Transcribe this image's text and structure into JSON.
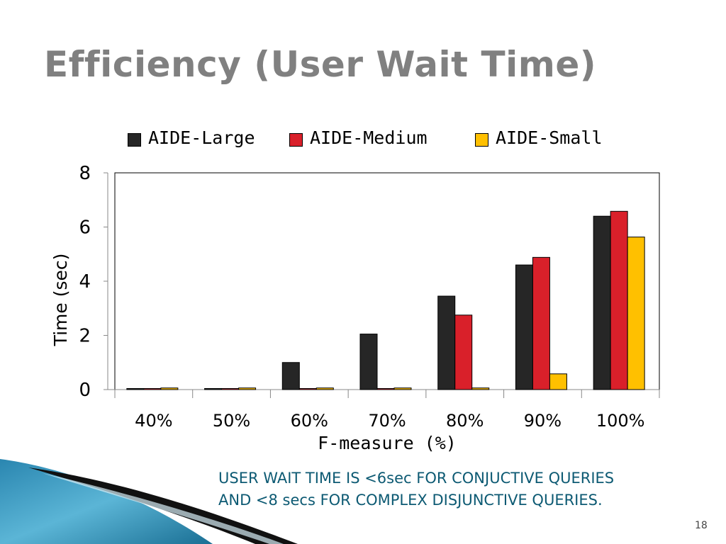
{
  "slide": {
    "title": "Efficiency (User Wait Time)",
    "note_line1": "USER WAIT TIME IS <6sec FOR CONJUCTIVE QUERIES",
    "note_line2": "AND <8 secs FOR COMPLEX DISJUNCTIVE QUERIES.",
    "page_number": "18"
  },
  "colors": {
    "title": "#808080",
    "note": "#0d5a73",
    "decor_light": "#5bb5d6",
    "decor_dark": "#1a6f94"
  },
  "chart_data": {
    "type": "bar",
    "xlabel": "F-measure (%)",
    "ylabel": "Time (sec)",
    "ylim": [
      0,
      8
    ],
    "yticks": [
      0,
      2,
      4,
      6,
      8
    ],
    "grid": false,
    "legend_position": "top",
    "categories": [
      "40%",
      "50%",
      "60%",
      "70%",
      "80%",
      "90%",
      "100%"
    ],
    "series": [
      {
        "name": "AIDE-Large",
        "color": "#262626",
        "values": [
          0.02,
          0.04,
          1.0,
          2.05,
          3.45,
          4.6,
          6.4
        ]
      },
      {
        "name": "AIDE-Medium",
        "color": "#d9202a",
        "values": [
          0.04,
          0.04,
          0.04,
          0.04,
          2.75,
          4.88,
          6.58
        ]
      },
      {
        "name": "AIDE-Small",
        "color": "#ffc000",
        "values": [
          0.06,
          0.06,
          0.06,
          0.06,
          0.06,
          0.58,
          5.63
        ]
      }
    ]
  }
}
